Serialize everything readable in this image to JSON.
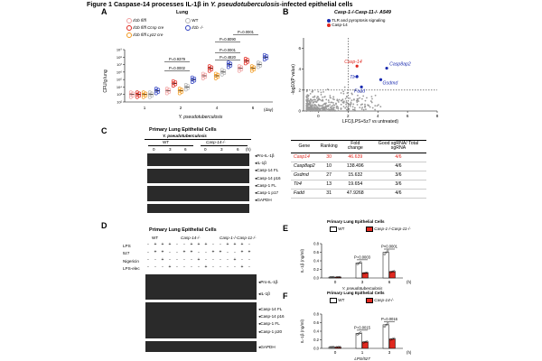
{
  "figure": {
    "title_prefix": "Figure 1 Caspase-14 processes IL-1β in ",
    "title_italic": "Y. pseudotuberculosis",
    "title_suffix": "-infected epithelial cells"
  },
  "panelA": {
    "label": "A",
    "title": "Lung",
    "ylabel": "CFU/g lung",
    "xlabel": "Y. pseudotuberculosis",
    "day_unit": "(day)",
    "legend": [
      {
        "name": "Il1b fl/fl",
        "color": "#f0a0a0"
      },
      {
        "name": "Il1b fl/fl Ccsp cre",
        "color": "#e0281f"
      },
      {
        "name": "Il1b fl/fl Lyz2 cre",
        "color": "#f29a1e"
      },
      {
        "name": "WT",
        "color": "#b5b5b5"
      },
      {
        "name": "Il1b -/-",
        "color": "#2e3fbf"
      }
    ],
    "yticks": [
      "10⁹",
      "10⁸",
      "10⁷",
      "10⁶",
      "10⁵",
      "10⁴",
      "10³",
      "10²"
    ],
    "xticks": [
      "1",
      "2",
      "4",
      "6"
    ],
    "pvalues": [
      "P=0.0001",
      "P=0.8090",
      "P=0.0001",
      "P=0.4820",
      "P=0.9379",
      "P=0.0002"
    ],
    "chart_data": {
      "type": "scatter",
      "x_categories": [
        "1",
        "2",
        "4",
        "6"
      ],
      "ylabel": "CFU/g lung",
      "yscale": "log",
      "ylim": [
        100,
        1000000000
      ],
      "series": [
        {
          "name": "Il1b fl/fl",
          "group_means_log10": [
            3.0,
            3.5,
            5.5,
            6.5
          ]
        },
        {
          "name": "Il1b fl/fl Ccsp cre",
          "group_means_log10": [
            3.0,
            4.5,
            6.5,
            7.5
          ]
        },
        {
          "name": "Il1b fl/fl Lyz2 cre",
          "group_means_log10": [
            3.0,
            3.5,
            5.5,
            6.5
          ]
        },
        {
          "name": "WT",
          "group_means_log10": [
            3.0,
            4.0,
            6.0,
            7.0
          ]
        },
        {
          "name": "Il1b -/-",
          "group_means_log10": [
            3.5,
            5.0,
            7.0,
            8.0
          ]
        }
      ]
    }
  },
  "panelB": {
    "label": "B",
    "title": "Casp-1-/-Casp-11-/- A549",
    "legend": [
      {
        "name": "TLR and pyroptosis signaling",
        "color": "#1a2bb0"
      },
      {
        "name": "Casp-14",
        "color": "#e0281f"
      }
    ],
    "ylabel": "-log10(P value)",
    "xlabel": "LFC(LPS+5z7 vs untreated)",
    "xticks": [
      "0",
      "2",
      "4",
      "6",
      "8"
    ],
    "yticks": [
      "0",
      "2",
      "4",
      "6"
    ],
    "annotations": [
      {
        "text": "Casp-14",
        "color": "#e0281f"
      },
      {
        "text": "Casp8ap2",
        "color": "#1a2bb0"
      },
      {
        "text": "Tlr4",
        "color": "#1a2bb0"
      },
      {
        "text": "Gsdmd",
        "color": "#1a2bb0"
      },
      {
        "text": "Fadd",
        "color": "#1a2bb0"
      }
    ],
    "chart_data": {
      "type": "scatter",
      "xlabel": "LFC(LPS+5z7 vs untreated)",
      "ylabel": "-log10(P value)",
      "xlim": [
        -1,
        8
      ],
      "ylim": [
        0,
        7
      ],
      "threshold_x": 2,
      "threshold_y": 2,
      "highlighted_points": [
        {
          "label": "Casp-14",
          "x": 2.6,
          "y": 4.3
        },
        {
          "label": "Casp8ap2",
          "x": 4.6,
          "y": 4.1
        },
        {
          "label": "Tlr4",
          "x": 2.6,
          "y": 3.3
        },
        {
          "label": "Gsdmd",
          "x": 4.2,
          "y": 3.0
        },
        {
          "label": "Fadd",
          "x": 2.9,
          "y": 2.3
        }
      ]
    }
  },
  "panelC": {
    "label": "C",
    "title": "Primary Lung Epithelial Cells",
    "subtitle": "Y. pseudotuberculosis",
    "groups": [
      "WT",
      "Casp-14-/-"
    ],
    "timepoints": [
      "0",
      "3",
      "6",
      "0",
      "3",
      "6"
    ],
    "time_unit": "(h)",
    "bands": [
      "Pro-IL-1β",
      "IL-1β",
      "Casp-14 FL",
      "Casp-14 p16",
      "Casp-1 FL",
      "Casp-1 p17",
      "GAPDH"
    ],
    "table": {
      "headers": [
        "Gene",
        "Ranking",
        "Fold change",
        "Good sgRNA/ Total sgRNA"
      ],
      "rows": [
        {
          "gene": "Casp14",
          "ranking": "30",
          "fold": "46.639",
          "sgrna": "4/6",
          "highlight": true
        },
        {
          "gene": "Casp8ap2",
          "ranking": "10",
          "fold": "138.496",
          "sgrna": "4/6",
          "highlight": false
        },
        {
          "gene": "Gsdmd",
          "ranking": "27",
          "fold": "15.632",
          "sgrna": "3/6",
          "highlight": false
        },
        {
          "gene": "Tlr4",
          "ranking": "13",
          "fold": "19.654",
          "sgrna": "3/6",
          "highlight": false
        },
        {
          "gene": "Fadd",
          "ranking": "31",
          "fold": "47.9268",
          "sgrna": "4/6",
          "highlight": false
        }
      ]
    }
  },
  "panelD": {
    "label": "D",
    "title": "Primary Lung Epithelial Cells",
    "groups": [
      "WT",
      "Casp-14-/-",
      "Casp-1-/-Casp-11-/-"
    ],
    "treatments": [
      "LPS",
      "5z7",
      "Nigericin",
      "LPS-elec"
    ],
    "bands_top": [
      "Pro-IL-1β",
      "IL-1β"
    ],
    "bands_mid": [
      "Casp-14 FL",
      "Casp-14 p16",
      "Casp-1 FL",
      "Casp-1 p20"
    ],
    "bands_bot": [
      "GAPDH"
    ]
  },
  "panelE": {
    "label": "E",
    "title": "Primary Lung Epithelial Cells",
    "legend": [
      "WT",
      "Casp-1-/-Casp-11-/-"
    ],
    "ylabel": "IL-1β (ng/ml)",
    "xlabel": "Y. pseudotuberculosis",
    "yticks": [
      "0.0",
      "0.2",
      "0.4",
      "0.6",
      "0.8"
    ],
    "xticks": [
      "0",
      "3",
      "6"
    ],
    "time_unit": "(h)",
    "pvalues": [
      "P=0.0003",
      "P<0.0001"
    ],
    "chart_data": {
      "type": "bar",
      "categories": [
        "0",
        "3",
        "6"
      ],
      "series": [
        {
          "name": "WT",
          "values": [
            0.02,
            0.35,
            0.6
          ]
        },
        {
          "name": "Casp-1-/-Casp-11-/-",
          "values": [
            0.02,
            0.12,
            0.15
          ]
        }
      ],
      "ylabel": "IL-1β (ng/ml)",
      "ylim": [
        0,
        0.8
      ]
    }
  },
  "panelF": {
    "label": "F",
    "title": "Primary Lung Epithelial Cells",
    "legend": [
      "WT",
      "Casp-14-/-"
    ],
    "ylabel": "IL-1β (ng/ml)",
    "xlabel": "LPS/5z7",
    "yticks": [
      "0.0",
      "0.2",
      "0.4",
      "0.6",
      "0.8"
    ],
    "xticks": [
      "0",
      "1",
      "3"
    ],
    "time_unit": "(h)",
    "pvalues": [
      "P=0.0015",
      "P=0.0016"
    ],
    "chart_data": {
      "type": "bar",
      "categories": [
        "0",
        "1",
        "3"
      ],
      "series": [
        {
          "name": "WT",
          "values": [
            0.03,
            0.35,
            0.55
          ]
        },
        {
          "name": "Casp-14-/-",
          "values": [
            0.03,
            0.15,
            0.22
          ]
        }
      ],
      "ylabel": "IL-1β (ng/ml)",
      "ylim": [
        0,
        0.8
      ]
    }
  }
}
